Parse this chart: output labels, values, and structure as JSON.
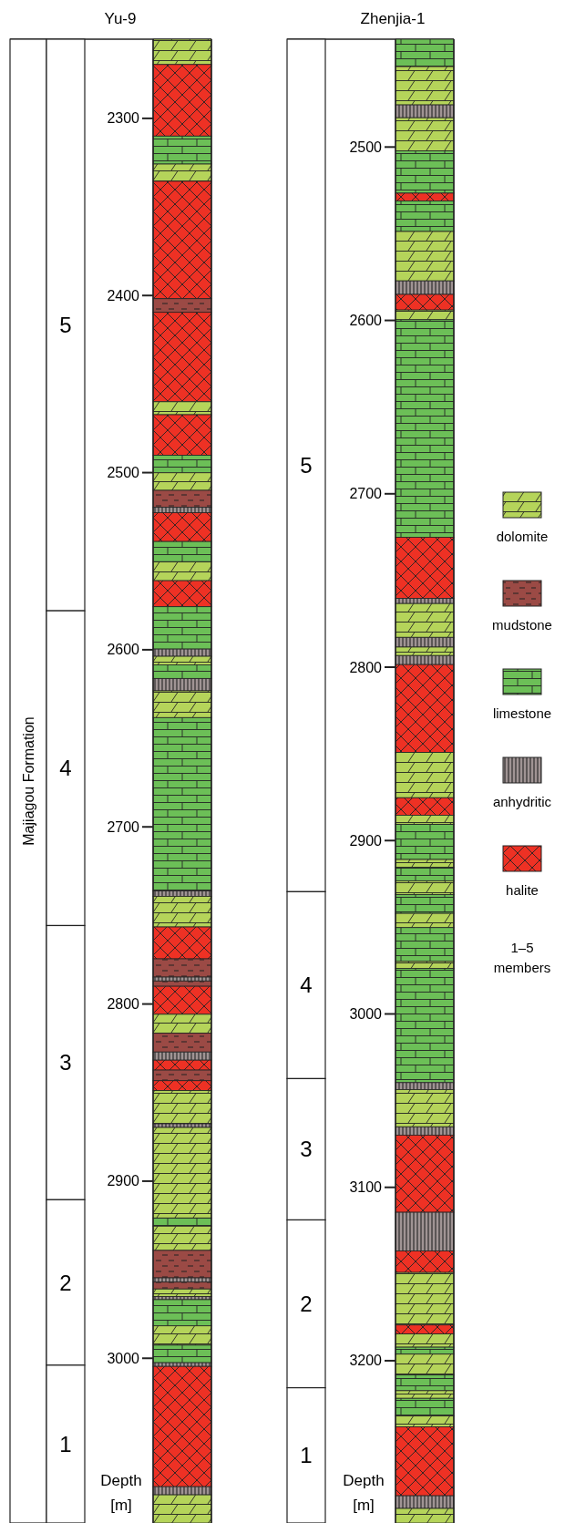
{
  "chart_data": [
    {
      "type": "bar",
      "categories": [
        null
      ],
      "title": "Yu-9",
      "ylabel": "Depth [m]",
      "ylim": [
        3093,
        2255.3
      ],
      "yticks": [
        2300,
        2400,
        2500,
        2600,
        2700,
        2800,
        2900,
        3000
      ],
      "bands": [
        {
          "axis": "y",
          "from": 2255.3,
          "to": 3093,
          "label": "Majiagou Formation"
        },
        {
          "axis": "y",
          "from": 2255.3,
          "to": 2578,
          "label": "5"
        },
        {
          "axis": "y",
          "from": 2578,
          "to": 2755.7,
          "label": "4"
        },
        {
          "axis": "y",
          "from": 2755.7,
          "to": 2910.5,
          "label": "3"
        },
        {
          "axis": "y",
          "from": 2910.5,
          "to": 3003.9,
          "label": "2"
        },
        {
          "axis": "y",
          "from": 3003.9,
          "to": 3093,
          "label": "1"
        },
        {
          "axis": "y",
          "from": 2255.3,
          "to": 2269.6,
          "color": "#b5d45a"
        },
        {
          "axis": "y",
          "from": 2269.6,
          "to": 2310,
          "color": "#ee3124"
        },
        {
          "axis": "y",
          "from": 2310,
          "to": 2325.8,
          "color": "#6cbf57"
        },
        {
          "axis": "y",
          "from": 2325.8,
          "to": 2335.5,
          "color": "#b5d45a"
        },
        {
          "axis": "y",
          "from": 2335.5,
          "to": 2401.8,
          "color": "#ee3124"
        },
        {
          "axis": "y",
          "from": 2401.8,
          "to": 2409.5,
          "color": "#9b4a45"
        },
        {
          "axis": "y",
          "from": 2409.5,
          "to": 2460,
          "color": "#ee3124"
        },
        {
          "axis": "y",
          "from": 2460,
          "to": 2467.3,
          "color": "#b5d45a"
        },
        {
          "axis": "y",
          "from": 2467.3,
          "to": 2490.2,
          "color": "#ee3124"
        },
        {
          "axis": "y",
          "from": 2490.2,
          "to": 2500.1,
          "color": "#6cbf57"
        },
        {
          "axis": "y",
          "from": 2500.1,
          "to": 2510,
          "color": "#b5d45a"
        },
        {
          "axis": "y",
          "from": 2510,
          "to": 2519.6,
          "color": "#9b4a45"
        },
        {
          "axis": "y",
          "from": 2519.6,
          "to": 2522.6,
          "color": "#a09494"
        },
        {
          "axis": "y",
          "from": 2522.6,
          "to": 2538.9,
          "color": "#ee3124"
        },
        {
          "axis": "y",
          "from": 2538.9,
          "to": 2550.3,
          "color": "#6cbf57"
        },
        {
          "axis": "y",
          "from": 2550.3,
          "to": 2561,
          "color": "#b5d45a"
        },
        {
          "axis": "y",
          "from": 2561,
          "to": 2575.7,
          "color": "#ee3124"
        },
        {
          "axis": "y",
          "from": 2575.7,
          "to": 2599.6,
          "color": "#6cbf57"
        },
        {
          "axis": "y",
          "from": 2599.6,
          "to": 2603.7,
          "color": "#a09494"
        },
        {
          "axis": "y",
          "from": 2603.7,
          "to": 2608.5,
          "color": "#b5d45a"
        },
        {
          "axis": "y",
          "from": 2608.5,
          "to": 2616.2,
          "color": "#6cbf57"
        },
        {
          "axis": "y",
          "from": 2616.2,
          "to": 2623.2,
          "color": "#a09494"
        },
        {
          "axis": "y",
          "from": 2623.2,
          "to": 2638.3,
          "color": "#b5d45a"
        },
        {
          "axis": "y",
          "from": 2638.3,
          "to": 2736.2,
          "color": "#6cbf57"
        },
        {
          "axis": "y",
          "from": 2736.2,
          "to": 2739.2,
          "color": "#a09494"
        },
        {
          "axis": "y",
          "from": 2739.2,
          "to": 2756.5,
          "color": "#b5d45a"
        },
        {
          "axis": "y",
          "from": 2756.5,
          "to": 2774.5,
          "color": "#ee3124"
        },
        {
          "axis": "y",
          "from": 2774.5,
          "to": 2784.8,
          "color": "#9b4a45"
        },
        {
          "axis": "y",
          "from": 2784.8,
          "to": 2787,
          "color": "#a09494"
        },
        {
          "axis": "y",
          "from": 2787,
          "to": 2790,
          "color": "#9b4a45"
        },
        {
          "axis": "y",
          "from": 2790,
          "to": 2805.8,
          "color": "#ee3124"
        },
        {
          "axis": "y",
          "from": 2805.8,
          "to": 2816.5,
          "color": "#b5d45a"
        },
        {
          "axis": "y",
          "from": 2816.5,
          "to": 2827.1,
          "color": "#9b4a45"
        },
        {
          "axis": "y",
          "from": 2827.1,
          "to": 2831.7,
          "color": "#a09494"
        },
        {
          "axis": "y",
          "from": 2831.7,
          "to": 2837.3,
          "color": "#ee3124"
        },
        {
          "axis": "y",
          "from": 2837.3,
          "to": 2843.3,
          "color": "#9b4a45"
        },
        {
          "axis": "y",
          "from": 2843.3,
          "to": 2848.9,
          "color": "#ee3124"
        },
        {
          "axis": "y",
          "from": 2848.9,
          "to": 2867.6,
          "color": "#b5d45a"
        },
        {
          "axis": "y",
          "from": 2867.6,
          "to": 2869.7,
          "color": "#a09494"
        },
        {
          "axis": "y",
          "from": 2869.7,
          "to": 2920.8,
          "color": "#b5d45a"
        },
        {
          "axis": "y",
          "from": 2920.8,
          "to": 2925.4,
          "color": "#6cbf57"
        },
        {
          "axis": "y",
          "from": 2925.4,
          "to": 2939.1,
          "color": "#b5d45a"
        },
        {
          "axis": "y",
          "from": 2939.1,
          "to": 2954.6,
          "color": "#9b4a45"
        },
        {
          "axis": "y",
          "from": 2954.6,
          "to": 2957,
          "color": "#a09494"
        },
        {
          "axis": "y",
          "from": 2957,
          "to": 2960.9,
          "color": "#9b4a45"
        },
        {
          "axis": "y",
          "from": 2960.9,
          "to": 2965.1,
          "color": "#b5d45a"
        },
        {
          "axis": "y",
          "from": 2965.1,
          "to": 2966.9,
          "color": "#a09494"
        },
        {
          "axis": "y",
          "from": 2966.9,
          "to": 2981.7,
          "color": "#6cbf57"
        },
        {
          "axis": "y",
          "from": 2981.7,
          "to": 2992.6,
          "color": "#b5d45a"
        },
        {
          "axis": "y",
          "from": 2992.6,
          "to": 3002.5,
          "color": "#6cbf57"
        },
        {
          "axis": "y",
          "from": 3002.5,
          "to": 3004.6,
          "color": "#a09494"
        },
        {
          "axis": "y",
          "from": 3004.6,
          "to": 3072.5,
          "color": "#ee3124"
        },
        {
          "axis": "y",
          "from": 3072.5,
          "to": 3077.1,
          "color": "#a09494"
        },
        {
          "axis": "y",
          "from": 3077.1,
          "to": 3093,
          "color": "#b5d45a"
        }
      ]
    },
    {
      "type": "bar",
      "categories": [
        null
      ],
      "title": "Zhenjia-1",
      "ylabel": "Depth [m]",
      "ylim": [
        3293.6,
        2437.8
      ],
      "yticks": [
        2500,
        2600,
        2700,
        2800,
        2900,
        3000,
        3100,
        3200
      ],
      "legend": "right",
      "annotations": [
        "1–5 members"
      ],
      "series": [
        {
          "name": "dolomite",
          "color": "#b5d45a",
          "values": [
            null
          ]
        },
        {
          "name": "mudstone",
          "color": "#9b4a45",
          "values": [
            null
          ]
        },
        {
          "name": "limestone",
          "color": "#6cbf57",
          "values": [
            null
          ]
        },
        {
          "name": "anhydritic",
          "color": "#a09494",
          "values": [
            null
          ]
        },
        {
          "name": "halite",
          "color": "#ee3124",
          "values": [
            null
          ]
        }
      ],
      "bands": [
        {
          "axis": "y",
          "from": 2437.8,
          "to": 2929.5,
          "label": "5"
        },
        {
          "axis": "y",
          "from": 2929.5,
          "to": 3037.3,
          "label": "4"
        },
        {
          "axis": "y",
          "from": 3037.3,
          "to": 3118.8,
          "label": "3"
        },
        {
          "axis": "y",
          "from": 3118.8,
          "to": 3215.6,
          "label": "2"
        },
        {
          "axis": "y",
          "from": 3215.6,
          "to": 3293.6,
          "label": "1"
        },
        {
          "axis": "y",
          "from": 2437.8,
          "to": 2453.6,
          "color": "#6cbf57"
        },
        {
          "axis": "y",
          "from": 2453.6,
          "to": 2475.7,
          "color": "#b5d45a"
        },
        {
          "axis": "y",
          "from": 2475.7,
          "to": 2483.1,
          "color": "#a09494"
        },
        {
          "axis": "y",
          "from": 2483.1,
          "to": 2502.2,
          "color": "#b5d45a"
        },
        {
          "axis": "y",
          "from": 2502.2,
          "to": 2526.6,
          "color": "#6cbf57"
        },
        {
          "axis": "y",
          "from": 2526.6,
          "to": 2531.1,
          "color": "#ee3124"
        },
        {
          "axis": "y",
          "from": 2531.1,
          "to": 2548.7,
          "color": "#6cbf57"
        },
        {
          "axis": "y",
          "from": 2548.7,
          "to": 2577.2,
          "color": "#b5d45a"
        },
        {
          "axis": "y",
          "from": 2577.2,
          "to": 2585,
          "color": "#a09494"
        },
        {
          "axis": "y",
          "from": 2585,
          "to": 2594,
          "color": "#ee3124"
        },
        {
          "axis": "y",
          "from": 2594,
          "to": 2599.6,
          "color": "#b5d45a"
        },
        {
          "axis": "y",
          "from": 2599.6,
          "to": 2725.1,
          "color": "#6cbf57"
        },
        {
          "axis": "y",
          "from": 2725.1,
          "to": 2760.3,
          "color": "#ee3124"
        },
        {
          "axis": "y",
          "from": 2760.3,
          "to": 2763.3,
          "color": "#a09494"
        },
        {
          "axis": "y",
          "from": 2763.3,
          "to": 2782.8,
          "color": "#b5d45a"
        },
        {
          "axis": "y",
          "from": 2782.8,
          "to": 2788.4,
          "color": "#a09494"
        },
        {
          "axis": "y",
          "from": 2788.4,
          "to": 2793.3,
          "color": "#b5d45a"
        },
        {
          "axis": "y",
          "from": 2793.3,
          "to": 2798.5,
          "color": "#a09494"
        },
        {
          "axis": "y",
          "from": 2798.5,
          "to": 2849.1,
          "color": "#ee3124"
        },
        {
          "axis": "y",
          "from": 2849.1,
          "to": 2875.3,
          "color": "#b5d45a"
        },
        {
          "axis": "y",
          "from": 2875.3,
          "to": 2885.4,
          "color": "#ee3124"
        },
        {
          "axis": "y",
          "from": 2885.4,
          "to": 2890.6,
          "color": "#b5d45a"
        },
        {
          "axis": "y",
          "from": 2890.6,
          "to": 2910.9,
          "color": "#6cbf57"
        },
        {
          "axis": "y",
          "from": 2910.9,
          "to": 2915.4,
          "color": "#b5d45a"
        },
        {
          "axis": "y",
          "from": 2915.4,
          "to": 2923.2,
          "color": "#6cbf57"
        },
        {
          "axis": "y",
          "from": 2923.2,
          "to": 2931.1,
          "color": "#b5d45a"
        },
        {
          "axis": "y",
          "from": 2931.1,
          "to": 2942,
          "color": "#6cbf57"
        },
        {
          "axis": "y",
          "from": 2942,
          "to": 2950.2,
          "color": "#b5d45a"
        },
        {
          "axis": "y",
          "from": 2950.2,
          "to": 2969.7,
          "color": "#6cbf57"
        },
        {
          "axis": "y",
          "from": 2969.7,
          "to": 2973.8,
          "color": "#b5d45a"
        },
        {
          "axis": "y",
          "from": 2973.8,
          "to": 3039.6,
          "color": "#6cbf57"
        },
        {
          "axis": "y",
          "from": 3039.6,
          "to": 3043.6,
          "color": "#a09494"
        },
        {
          "axis": "y",
          "from": 3043.6,
          "to": 3065.1,
          "color": "#b5d45a"
        },
        {
          "axis": "y",
          "from": 3065.1,
          "to": 3069.9,
          "color": "#a09494"
        },
        {
          "axis": "y",
          "from": 3069.9,
          "to": 3114.4,
          "color": "#ee3124"
        },
        {
          "axis": "y",
          "from": 3114.4,
          "to": 3136.7,
          "color": "#a09494"
        },
        {
          "axis": "y",
          "from": 3136.7,
          "to": 3149.1,
          "color": "#ee3124"
        },
        {
          "axis": "y",
          "from": 3149.1,
          "to": 3179.4,
          "color": "#b5d45a"
        },
        {
          "axis": "y",
          "from": 3179.4,
          "to": 3184.5,
          "color": "#ee3124"
        },
        {
          "axis": "y",
          "from": 3184.5,
          "to": 3192.2,
          "color": "#b5d45a"
        },
        {
          "axis": "y",
          "from": 3192.2,
          "to": 3196.2,
          "color": "#6cbf57"
        },
        {
          "axis": "y",
          "from": 3196.2,
          "to": 3208.2,
          "color": "#b5d45a"
        },
        {
          "axis": "y",
          "from": 3208.2,
          "to": 3217.3,
          "color": "#6cbf57"
        },
        {
          "axis": "y",
          "from": 3217.3,
          "to": 3221.7,
          "color": "#b5d45a"
        },
        {
          "axis": "y",
          "from": 3221.7,
          "to": 3231.9,
          "color": "#6cbf57"
        },
        {
          "axis": "y",
          "from": 3231.9,
          "to": 3238.1,
          "color": "#b5d45a"
        },
        {
          "axis": "y",
          "from": 3238.1,
          "to": 3277.9,
          "color": "#ee3124"
        },
        {
          "axis": "y",
          "from": 3277.9,
          "to": 3285.2,
          "color": "#a09494"
        },
        {
          "axis": "y",
          "from": 3285.2,
          "to": 3293.6,
          "color": "#b5d45a"
        }
      ]
    }
  ]
}
